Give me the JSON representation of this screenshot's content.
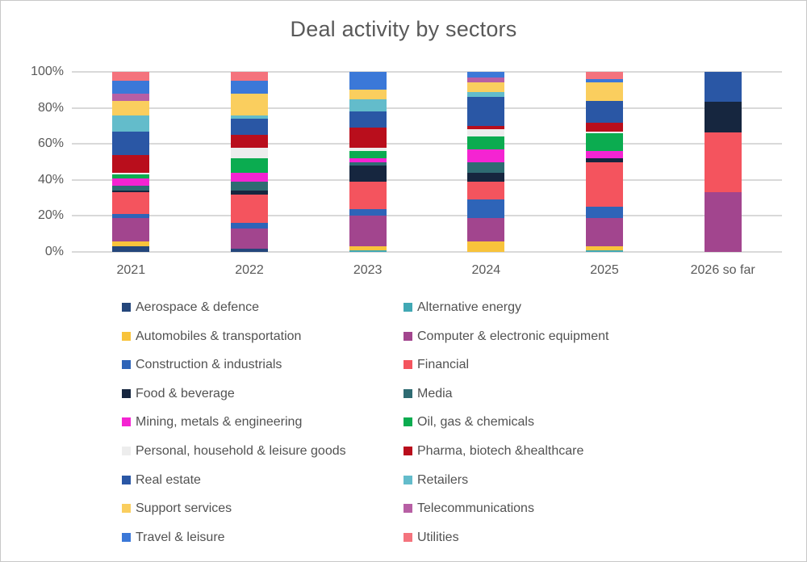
{
  "chart_data": {
    "type": "bar",
    "subtype": "stacked-100-percent",
    "title": "Deal activity by sectors",
    "categories": [
      "2021",
      "2022",
      "2023",
      "2024",
      "2025",
      "2026 so far"
    ],
    "ylim": [
      0,
      100
    ],
    "grid": true,
    "legend_position": "bottom",
    "legend_columns": 2,
    "yticks": [
      {
        "label": "0%",
        "value": 0
      },
      {
        "label": "20%",
        "value": 20
      },
      {
        "label": "40%",
        "value": 40
      },
      {
        "label": "60%",
        "value": 60
      },
      {
        "label": "80%",
        "value": 80
      },
      {
        "label": "100%",
        "value": 100
      }
    ],
    "series": [
      {
        "name": "Aerospace & defence",
        "color": "#24467B",
        "values": [
          3,
          2,
          0,
          0,
          0,
          0
        ]
      },
      {
        "name": "Alternative energy",
        "color": "#41A8B4",
        "values": [
          0,
          0,
          1,
          0,
          1,
          0
        ]
      },
      {
        "name": "Automobiles & transportation",
        "color": "#F8C33B",
        "values": [
          3,
          0,
          2,
          6,
          2,
          0
        ]
      },
      {
        "name": "Computer & electronic equipment",
        "color": "#A2458E",
        "values": [
          13,
          11,
          17,
          13,
          16,
          33.3
        ]
      },
      {
        "name": "Construction & industrials",
        "color": "#2E64B8",
        "values": [
          2,
          3,
          4,
          10,
          6,
          0
        ]
      },
      {
        "name": "Financial",
        "color": "#F4545E",
        "values": [
          12,
          16,
          15,
          10,
          25,
          33.3
        ]
      },
      {
        "name": "Food & beverage",
        "color": "#16263F",
        "values": [
          1,
          2,
          9,
          5,
          2,
          16.7
        ]
      },
      {
        "name": "Media",
        "color": "#2E6B72",
        "values": [
          3,
          5,
          2,
          6,
          0,
          0
        ]
      },
      {
        "name": "Mining, metals & engineering",
        "color": "#F424D2",
        "values": [
          4,
          5,
          2,
          7,
          4,
          0
        ]
      },
      {
        "name": "Oil, gas & chemicals",
        "color": "#0BAC50",
        "values": [
          2,
          8,
          4,
          7,
          10,
          0
        ]
      },
      {
        "name": "Personal, household & leisure goods",
        "color": "#EDEDED",
        "values": [
          1,
          6,
          2,
          4,
          1,
          0
        ]
      },
      {
        "name": "Pharma, biotech &healthcare",
        "color": "#B90E1C",
        "values": [
          10,
          7,
          11,
          2,
          5,
          0
        ]
      },
      {
        "name": "Real estate",
        "color": "#2A57A5",
        "values": [
          13,
          9,
          9,
          16,
          12,
          16.7
        ]
      },
      {
        "name": "Retailers",
        "color": "#63BCCB",
        "values": [
          9,
          2,
          7,
          3,
          0,
          0
        ]
      },
      {
        "name": "Support services",
        "color": "#FACE5E",
        "values": [
          8,
          12,
          5,
          5,
          10,
          0
        ]
      },
      {
        "name": "Telecommunications",
        "color": "#B75FA4",
        "values": [
          4,
          0,
          0,
          3,
          0,
          0
        ]
      },
      {
        "name": "Travel & leisure",
        "color": "#3B78D8",
        "values": [
          7,
          7,
          10,
          3,
          2,
          0
        ]
      },
      {
        "name": "Utilities",
        "color": "#F4737D",
        "values": [
          5,
          5,
          0,
          0,
          4,
          0
        ]
      }
    ]
  }
}
